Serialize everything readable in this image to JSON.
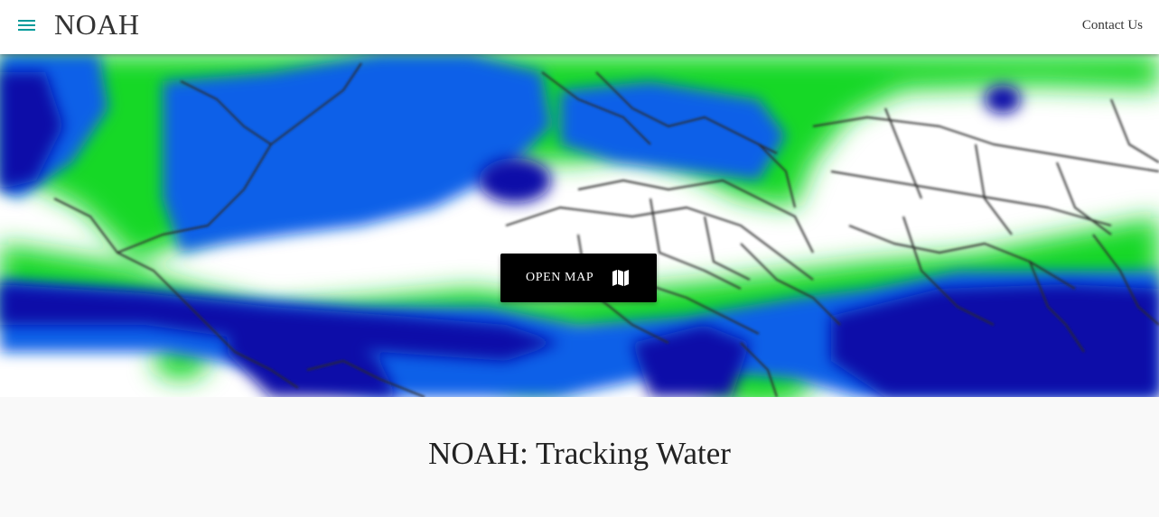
{
  "header": {
    "brand": "NOAH",
    "contact_label": "Contact Us",
    "menu_icon": "hamburger-menu-icon",
    "accent_color": "#009a9a"
  },
  "hero": {
    "image": "blurred world precipitation map",
    "open_map_label": "OPEN MAP",
    "open_map_icon": "map-icon",
    "colors": {
      "land_dry": "#ffffff",
      "moist": "#18d828",
      "wet": "#1060e8",
      "very_wet": "#0a10a8"
    }
  },
  "main": {
    "title": "NOAH: Tracking Water"
  }
}
